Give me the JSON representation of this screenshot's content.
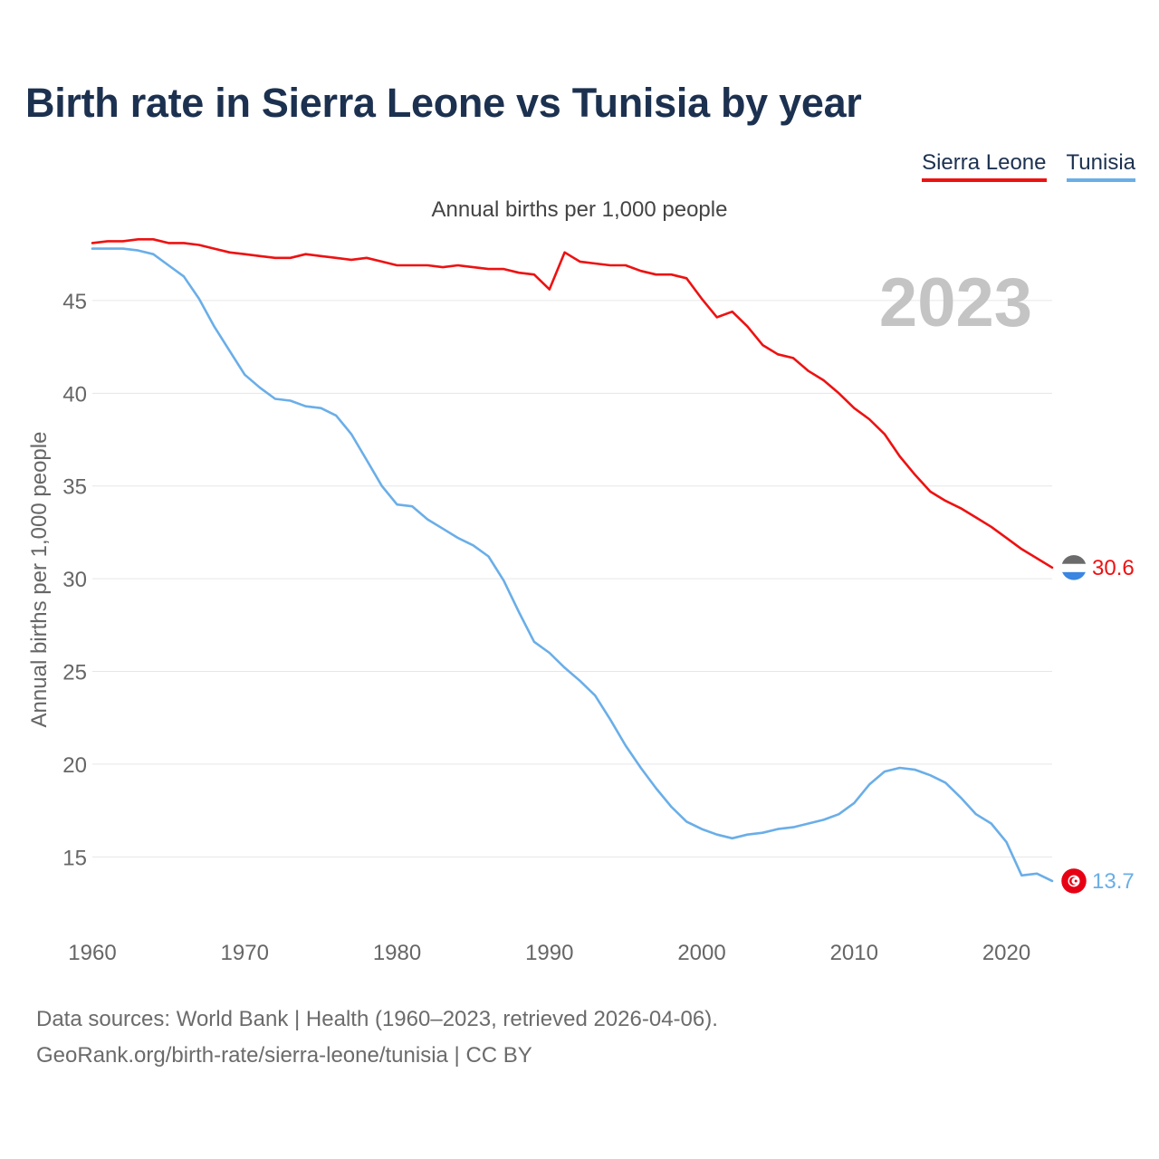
{
  "title": "Birth rate in Sierra Leone vs Tunisia by year",
  "subtitle": "Annual births per 1,000 people",
  "legend": [
    {
      "name": "Sierra Leone",
      "color": "#ee1111"
    },
    {
      "name": "Tunisia",
      "color": "#6aaee8"
    }
  ],
  "year_watermark": "2023",
  "source": {
    "line1": "Data sources: World Bank | Health (1960–2023, retrieved 2026-04-06).",
    "line2": "GeoRank.org/birth-rate/sierra-leone/tunisia | CC BY"
  },
  "chart_data": {
    "type": "line",
    "title": "Birth rate in Sierra Leone vs Tunisia by year",
    "xlabel": "",
    "ylabel": "Annual births per 1,000 people",
    "xlim": [
      1960,
      2023
    ],
    "ylim": [
      11.5,
      49
    ],
    "xticks": [
      1960,
      1970,
      1980,
      1990,
      2000,
      2010,
      2020
    ],
    "yticks": [
      15,
      20,
      25,
      30,
      35,
      40,
      45
    ],
    "grid": true,
    "x": [
      1960,
      1961,
      1962,
      1963,
      1964,
      1965,
      1966,
      1967,
      1968,
      1969,
      1970,
      1971,
      1972,
      1973,
      1974,
      1975,
      1976,
      1977,
      1978,
      1979,
      1980,
      1981,
      1982,
      1983,
      1984,
      1985,
      1986,
      1987,
      1988,
      1989,
      1990,
      1991,
      1992,
      1993,
      1994,
      1995,
      1996,
      1997,
      1998,
      1999,
      2000,
      2001,
      2002,
      2003,
      2004,
      2005,
      2006,
      2007,
      2008,
      2009,
      2010,
      2011,
      2012,
      2013,
      2014,
      2015,
      2016,
      2017,
      2018,
      2019,
      2020,
      2021,
      2022,
      2023
    ],
    "series": [
      {
        "name": "Sierra Leone",
        "color": "#ee1111",
        "end_label": "30.6",
        "values": [
          48.1,
          48.2,
          48.2,
          48.3,
          48.3,
          48.1,
          48.1,
          48.0,
          47.8,
          47.6,
          47.5,
          47.4,
          47.3,
          47.3,
          47.5,
          47.4,
          47.3,
          47.2,
          47.3,
          47.1,
          46.9,
          46.9,
          46.9,
          46.8,
          46.9,
          46.8,
          46.7,
          46.7,
          46.5,
          46.4,
          45.6,
          47.6,
          47.1,
          47.0,
          46.9,
          46.9,
          46.6,
          46.4,
          46.4,
          46.2,
          45.1,
          44.1,
          44.4,
          43.6,
          42.6,
          42.1,
          41.9,
          41.2,
          40.7,
          40.0,
          39.2,
          38.6,
          37.8,
          36.6,
          35.6,
          34.7,
          34.2,
          33.8,
          33.3,
          32.8,
          32.2,
          31.6,
          31.1,
          30.6
        ]
      },
      {
        "name": "Tunisia",
        "color": "#6aaee8",
        "end_label": "13.7",
        "values": [
          47.8,
          47.8,
          47.8,
          47.7,
          47.5,
          46.9,
          46.3,
          45.1,
          43.6,
          42.3,
          41.0,
          40.3,
          39.7,
          39.6,
          39.3,
          39.2,
          38.8,
          37.8,
          36.4,
          35.0,
          34.0,
          33.9,
          33.2,
          32.7,
          32.2,
          31.8,
          31.2,
          29.9,
          28.2,
          26.6,
          26.0,
          25.2,
          24.5,
          23.7,
          22.4,
          21.0,
          19.8,
          18.7,
          17.7,
          16.9,
          16.5,
          16.2,
          16.0,
          16.2,
          16.3,
          16.5,
          16.6,
          16.8,
          17.0,
          17.3,
          17.9,
          18.9,
          19.6,
          19.8,
          19.7,
          19.4,
          19.0,
          18.2,
          17.3,
          16.8,
          15.8,
          14.0,
          14.1,
          13.7
        ]
      }
    ]
  }
}
